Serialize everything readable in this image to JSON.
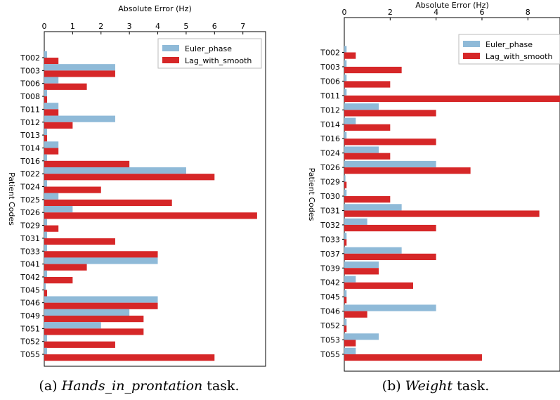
{
  "colors": {
    "euler": "#8fbad8",
    "lag": "#d62728"
  },
  "chart_data": [
    {
      "type": "bar",
      "orientation": "horizontal",
      "xlabel": "Absolute Error (Hz)",
      "ylabel": "Patient Codes",
      "xlim": [
        0,
        7.8
      ],
      "xticks": [
        0,
        1,
        2,
        3,
        4,
        5,
        6,
        7
      ],
      "x_axis_position": "top",
      "legend": "top-right",
      "categories": [
        "T002",
        "T003",
        "T006",
        "T008",
        "T011",
        "T012",
        "T013",
        "T014",
        "T016",
        "T022",
        "T024",
        "T025",
        "T026",
        "T029",
        "T031",
        "T033",
        "T041",
        "T042",
        "T045",
        "T046",
        "T049",
        "T051",
        "T052",
        "T055"
      ],
      "series": [
        {
          "name": "Euler_phase",
          "values": [
            0.1,
            2.5,
            0.5,
            0.1,
            0.5,
            2.5,
            0.1,
            0.5,
            0.1,
            5.0,
            0.1,
            0.5,
            1.0,
            0.1,
            0.1,
            0.1,
            4.0,
            0.1,
            0.05,
            4.0,
            3.0,
            2.0,
            0.1,
            0.1
          ]
        },
        {
          "name": "Lag_with_smooth",
          "values": [
            0.5,
            2.5,
            1.5,
            0.1,
            0.5,
            1.0,
            0.1,
            0.5,
            3.0,
            6.0,
            2.0,
            4.5,
            7.5,
            0.5,
            2.5,
            4.0,
            1.5,
            1.0,
            0.1,
            4.0,
            3.5,
            3.5,
            2.5,
            6.0
          ]
        }
      ],
      "caption": {
        "prefix": "(a) ",
        "italic": "Hands_in_prontation",
        "suffix": " task."
      }
    },
    {
      "type": "bar",
      "orientation": "horizontal",
      "xlabel": "Absolute Error (Hz)",
      "ylabel": "Patient Codes",
      "xlim": [
        0,
        9.4
      ],
      "xticks": [
        0,
        2,
        4,
        6,
        8
      ],
      "x_axis_position": "top",
      "legend": "top-right",
      "categories": [
        "T002",
        "T003",
        "T006",
        "T011",
        "T012",
        "T014",
        "T016",
        "T024",
        "T026",
        "T029",
        "T030",
        "T031",
        "T032",
        "T033",
        "T037",
        "T039",
        "T042",
        "T045",
        "T046",
        "T052",
        "T053",
        "T055"
      ],
      "series": [
        {
          "name": "Euler_phase",
          "values": [
            0.1,
            0.1,
            0.1,
            0.1,
            1.5,
            0.5,
            0.1,
            1.5,
            4.0,
            0.05,
            0.1,
            2.5,
            1.0,
            0.1,
            2.5,
            1.5,
            0.5,
            0.1,
            4.0,
            0.1,
            1.5,
            0.5
          ]
        },
        {
          "name": "Lag_with_smooth",
          "values": [
            0.5,
            2.5,
            2.0,
            9.5,
            4.0,
            2.0,
            4.0,
            2.0,
            5.5,
            0.1,
            2.0,
            8.5,
            4.0,
            0.1,
            4.0,
            1.5,
            3.0,
            0.1,
            1.0,
            0.1,
            0.5,
            6.0
          ]
        }
      ],
      "caption": {
        "prefix": "(b) ",
        "italic": "Weight",
        "suffix": " task."
      }
    }
  ]
}
